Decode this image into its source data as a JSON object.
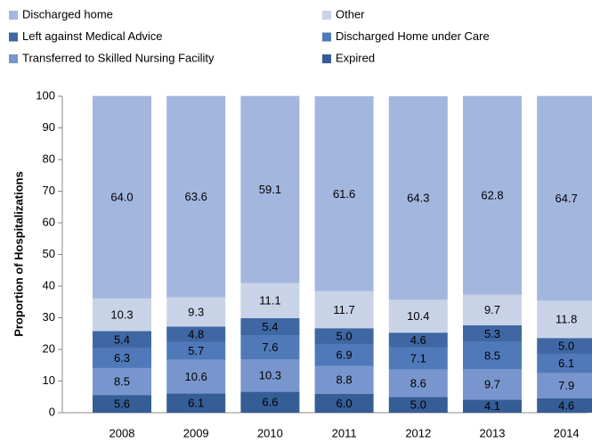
{
  "chart_data": {
    "type": "stacked_bar",
    "y_label": "Proportion of Hospitalizations",
    "categories": [
      "2008",
      "2009",
      "2010",
      "2011",
      "2012",
      "2013",
      "2014"
    ],
    "series": [
      {
        "name": "Discharged  home",
        "color": "#a3b6de",
        "values": [
          64.0,
          63.6,
          59.1,
          61.6,
          64.3,
          62.8,
          64.7
        ],
        "value_labels": [
          "64.0",
          "63.6",
          "59.1",
          "61.6",
          "64.3",
          "62.8",
          "64.7"
        ]
      },
      {
        "name": "Other",
        "color": "#c9d3e8",
        "values": [
          10.3,
          9.3,
          11.1,
          11.7,
          10.4,
          9.7,
          11.8
        ],
        "value_labels": [
          "10.3",
          "9.3",
          "11.1",
          "11.7",
          "10.4",
          "9.7",
          "11.8"
        ]
      },
      {
        "name": "Left against Medical Advice",
        "color": "#3f67a3",
        "values": [
          5.4,
          4.8,
          5.4,
          5.0,
          4.6,
          5.3,
          5.0
        ],
        "value_labels": [
          "5.4",
          "4.8",
          "5.4",
          "5.0",
          "4.6",
          "5.3",
          "5.0"
        ]
      },
      {
        "name": "Discharged  Home under Care",
        "color": "#5079ba",
        "values": [
          6.3,
          5.7,
          7.6,
          6.9,
          7.1,
          8.5,
          6.1
        ],
        "value_labels": [
          "6.3",
          "5.7",
          "7.6",
          "6.9",
          "7.1",
          "8.5",
          "6.1"
        ]
      },
      {
        "name": "Transferred to Skilled Nursing Facility",
        "color": "#7896cd",
        "values": [
          8.5,
          10.6,
          10.3,
          8.8,
          8.6,
          9.7,
          7.9
        ],
        "value_labels": [
          "8.5",
          "10.6",
          "10.3",
          "8.8",
          "8.6",
          "9.7",
          "7.9"
        ]
      },
      {
        "name": "Expired",
        "color": "#355d96",
        "values": [
          5.6,
          6.1,
          6.6,
          6.0,
          5.0,
          4.1,
          4.6
        ],
        "value_labels": [
          "5.6",
          "6.1",
          "6.6",
          "6.0",
          "5.0",
          "4.1",
          "4.6"
        ]
      }
    ],
    "ylim": [
      0,
      100
    ],
    "yticks": [
      0,
      10,
      20,
      30,
      40,
      50,
      60,
      70,
      80,
      90,
      100
    ]
  }
}
